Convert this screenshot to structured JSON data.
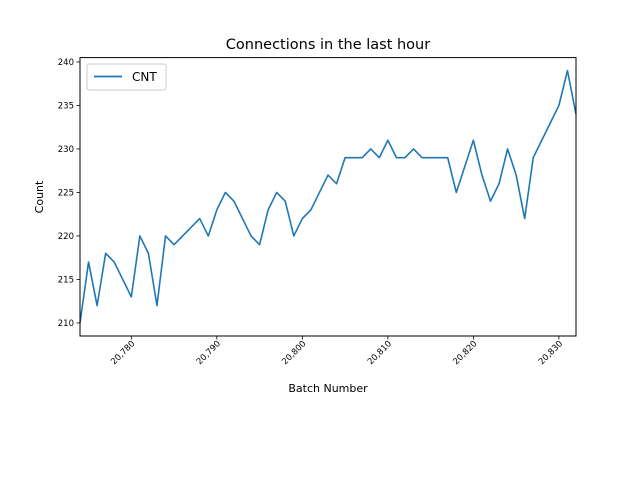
{
  "chart_data": {
    "type": "line",
    "title": "Connections in the last hour",
    "xlabel": "Batch Number",
    "ylabel": "Count",
    "xlim": [
      20774,
      20832
    ],
    "ylim": [
      208.5,
      240.5
    ],
    "xticks": [
      20780,
      20790,
      20800,
      20810,
      20820,
      20830
    ],
    "xtick_labels": [
      "20,780",
      "20,790",
      "20,800",
      "20,810",
      "20,820",
      "20,830"
    ],
    "yticks": [
      210,
      215,
      220,
      225,
      230,
      235,
      240
    ],
    "ytick_labels": [
      "210",
      "215",
      "220",
      "225",
      "230",
      "235",
      "240"
    ],
    "grid": false,
    "legend_position": "top-left",
    "series": [
      {
        "name": "CNT",
        "color": "#1f77b4",
        "x": [
          20774,
          20775,
          20776,
          20777,
          20778,
          20779,
          20780,
          20781,
          20782,
          20783,
          20784,
          20785,
          20786,
          20787,
          20788,
          20789,
          20790,
          20791,
          20792,
          20793,
          20794,
          20795,
          20796,
          20797,
          20798,
          20799,
          20800,
          20801,
          20802,
          20803,
          20804,
          20805,
          20806,
          20807,
          20808,
          20809,
          20810,
          20811,
          20812,
          20813,
          20814,
          20815,
          20816,
          20817,
          20818,
          20819,
          20820,
          20821,
          20822,
          20823,
          20824,
          20825,
          20826,
          20827,
          20828,
          20829,
          20830,
          20831,
          20832
        ],
        "y": [
          210,
          217,
          212,
          218,
          217,
          215,
          213,
          220,
          218,
          212,
          220,
          219,
          220,
          221,
          222,
          220,
          223,
          225,
          224,
          222,
          220,
          219,
          223,
          225,
          224,
          220,
          222,
          223,
          225,
          227,
          226,
          229,
          229,
          229,
          230,
          229,
          231,
          229,
          229,
          230,
          229,
          229,
          229,
          229,
          225,
          228,
          231,
          227,
          224,
          226,
          230,
          227,
          222,
          229,
          231,
          233,
          235,
          239,
          234
        ]
      }
    ]
  }
}
